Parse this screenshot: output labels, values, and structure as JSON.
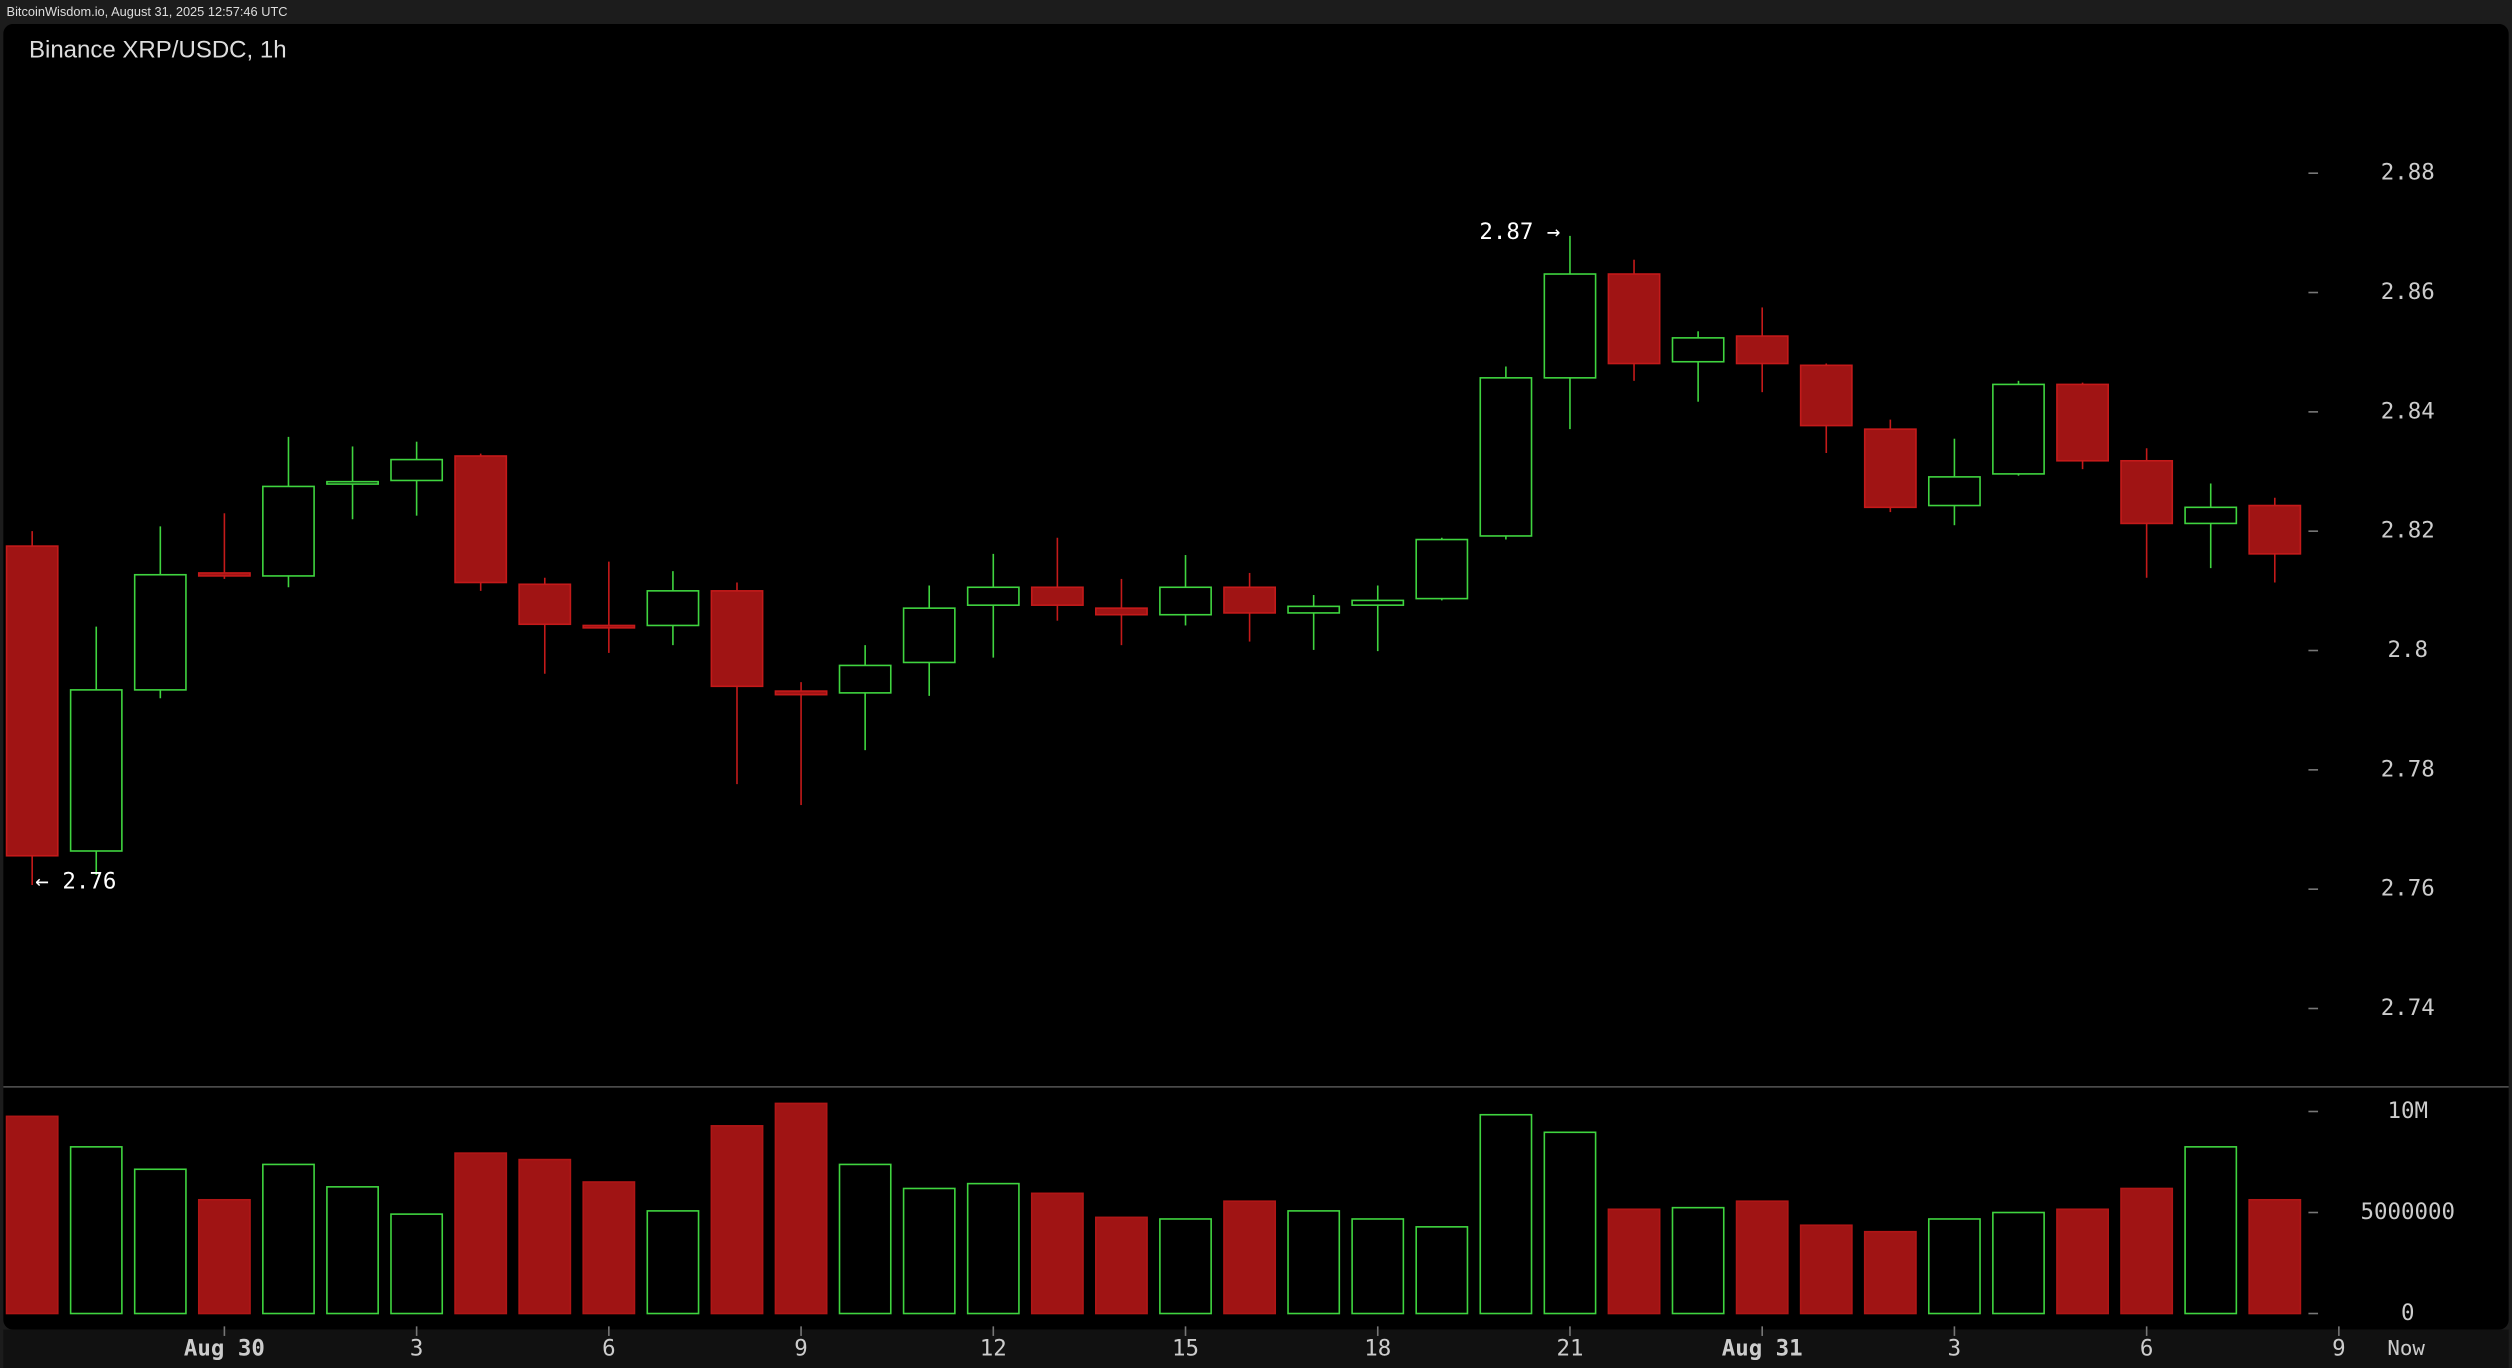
{
  "header": "BitcoinWisdom.io, August 31, 2025 12:57:46 UTC",
  "chart_data": {
    "type": "candlestick",
    "title": "Binance XRP/USDC, 1h",
    "open": [
      2.8175,
      2.7664,
      2.7934,
      2.813,
      2.8125,
      2.828,
      2.8285,
      2.8326,
      2.8111,
      2.8042,
      2.8042,
      2.81,
      2.7932,
      2.7929,
      2.798,
      2.8076,
      2.8106,
      2.8071,
      2.806,
      2.8106,
      2.8063,
      2.8076,
      2.8087,
      2.8192,
      2.8457,
      2.8631,
      2.8484,
      2.8527,
      2.8478,
      2.8371,
      2.8243,
      2.8296,
      2.8446,
      2.8318,
      2.8213,
      2.8243
    ],
    "high": [
      2.82,
      2.804,
      2.8208,
      2.823,
      2.8358,
      2.8342,
      2.835,
      2.833,
      2.8122,
      2.8149,
      2.8133,
      2.8114,
      2.7947,
      2.8009,
      2.8109,
      2.8162,
      2.8189,
      2.812,
      2.816,
      2.813,
      2.8093,
      2.8109,
      2.8189,
      2.8476,
      2.8695,
      2.8655,
      2.8535,
      2.8575,
      2.8481,
      2.8387,
      2.8355,
      2.8452,
      2.8449,
      2.8339,
      2.828,
      2.8256
    ],
    "low": [
      2.7607,
      2.7624,
      2.792,
      2.812,
      2.8106,
      2.822,
      2.8226,
      2.81,
      2.7961,
      2.7996,
      2.8009,
      2.7776,
      2.7741,
      2.7833,
      2.7924,
      2.7988,
      2.805,
      2.8009,
      2.8042,
      2.8015,
      2.8001,
      2.7999,
      2.8084,
      2.8186,
      2.8371,
      2.8452,
      2.8417,
      2.8433,
      2.8331,
      2.8232,
      2.821,
      2.8293,
      2.8304,
      2.8122,
      2.8138,
      2.8114
    ],
    "close": [
      2.7656,
      2.7934,
      2.8127,
      2.8125,
      2.8275,
      2.8283,
      2.832,
      2.8114,
      2.8044,
      2.8039,
      2.81,
      2.794,
      2.7926,
      2.7975,
      2.8071,
      2.8106,
      2.8076,
      2.806,
      2.8106,
      2.8063,
      2.8074,
      2.8084,
      2.8186,
      2.8457,
      2.8631,
      2.8481,
      2.8524,
      2.8481,
      2.8377,
      2.824,
      2.8291,
      2.8446,
      2.8318,
      2.8213,
      2.824,
      2.8162
    ],
    "volume": [
      9760000,
      8250000,
      7140000,
      5630000,
      7380000,
      6270000,
      4920000,
      7940000,
      7620000,
      6510000,
      5080000,
      9290000,
      10400000,
      7380000,
      6190000,
      6430000,
      5950000,
      4760000,
      4680000,
      5560000,
      5080000,
      4680000,
      4290000,
      9840000,
      8970000,
      5160000,
      5240000,
      5560000,
      4370000,
      4050000,
      4680000,
      5000000,
      5160000,
      6190000,
      8250000,
      5630000
    ],
    "up_color": "#3fd43f",
    "down_color": "#a01414",
    "xlim": [
      -0.5,
      38.7
    ],
    "xticks": [
      {
        "value": 3,
        "label": "Aug 30"
      },
      {
        "value": 6,
        "label": "3"
      },
      {
        "value": 9,
        "label": "6"
      },
      {
        "value": 12,
        "label": "9"
      },
      {
        "value": 15,
        "label": "12"
      },
      {
        "value": 18,
        "label": "15"
      },
      {
        "value": 21,
        "label": "18"
      },
      {
        "value": 24,
        "label": "21"
      },
      {
        "value": 27,
        "label": "Aug 31"
      },
      {
        "value": 30,
        "label": "3"
      },
      {
        "value": 33,
        "label": "6"
      },
      {
        "value": 36,
        "label": "9"
      }
    ],
    "now_label": "Now",
    "ylim": [
      2.727,
      2.905
    ],
    "yticks": [
      2.74,
      2.76,
      2.78,
      2.8,
      2.82,
      2.84,
      2.86,
      2.88
    ],
    "y2lim": [
      -635000,
      11100000
    ],
    "y2ticks": [
      0,
      5000000,
      {
        "value": 10000000,
        "label": "10M"
      }
    ],
    "max_label": "2.87 →",
    "min_label": "← 2.76"
  }
}
